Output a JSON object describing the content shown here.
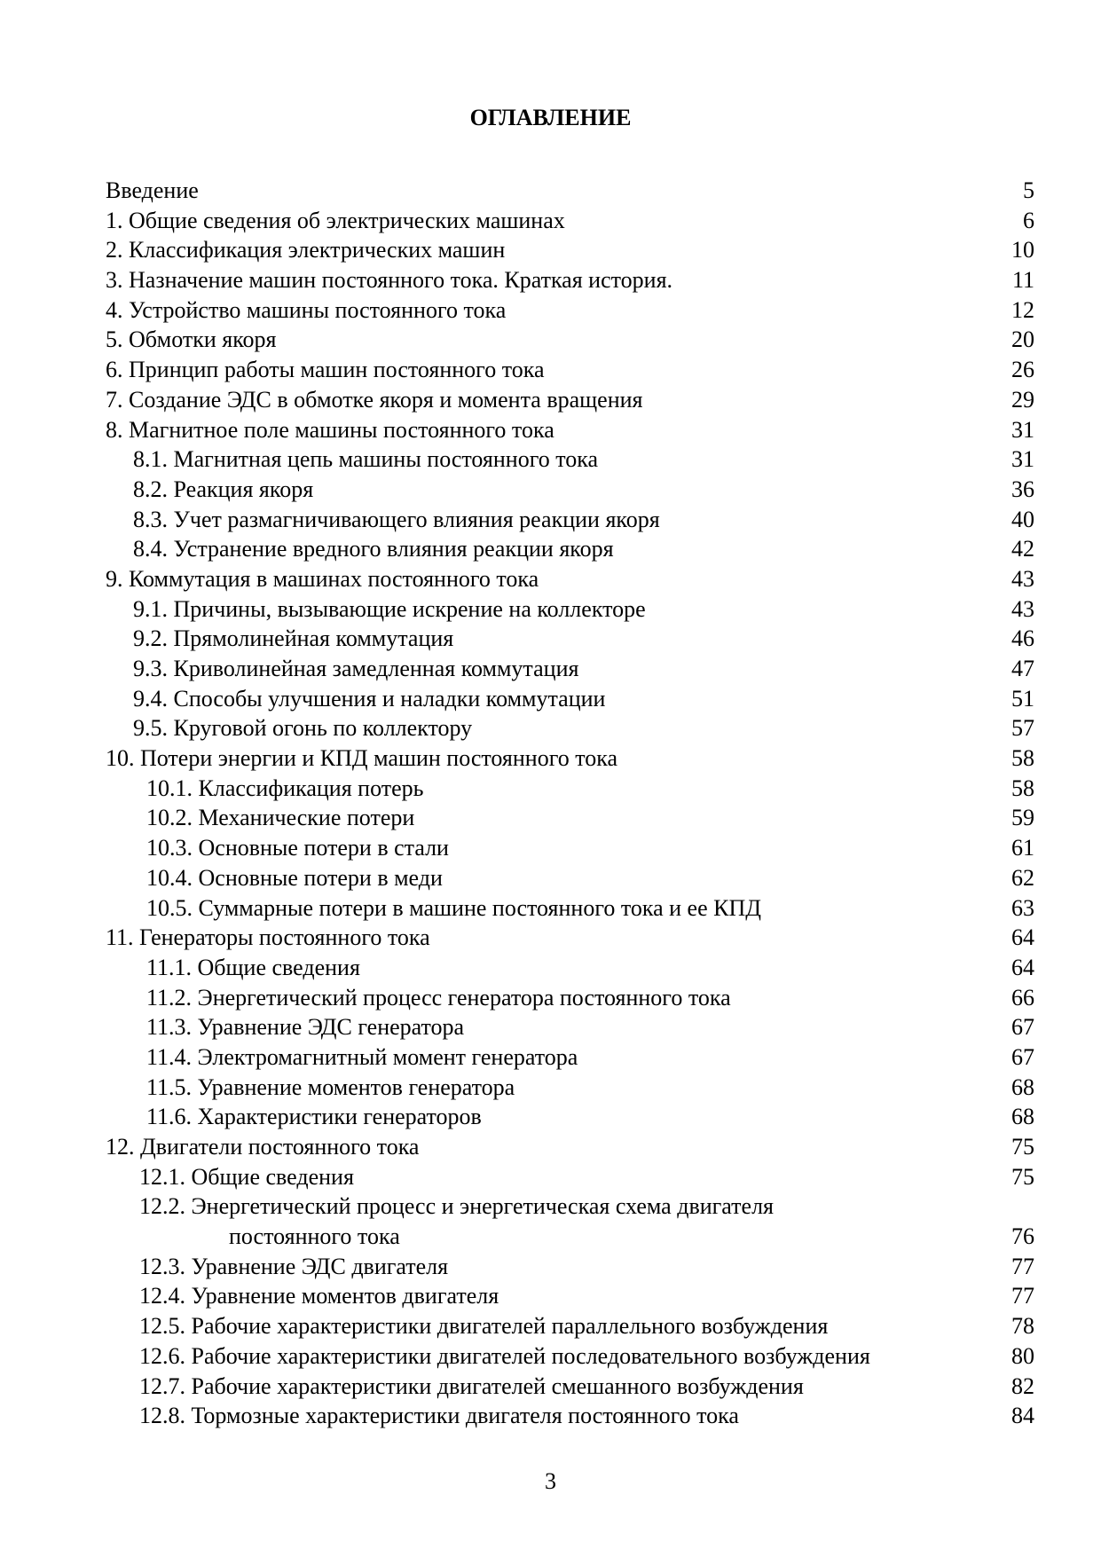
{
  "title": "ОГЛАВЛЕНИЕ",
  "entries": [
    {
      "label": "Введение",
      "page": "5",
      "level": 0
    },
    {
      "label": "1. Общие сведения об электрических машинах",
      "page": "6",
      "level": 0
    },
    {
      "label": "2. Классификация электрических машин",
      "page": "10",
      "level": 0
    },
    {
      "label": "3. Назначение машин постоянного тока. Краткая история.",
      "page": "11",
      "level": 0
    },
    {
      "label": "4. Устройство машины постоянного тока",
      "page": "12",
      "level": 0
    },
    {
      "label": "5. Обмотки якоря",
      "page": "20",
      "level": 0
    },
    {
      "label": "6. Принцип работы машин постоянного тока",
      "page": "26",
      "level": 0
    },
    {
      "label": "7. Создание ЭДС в обмотке якоря и момента вращения",
      "page": "29",
      "level": 0
    },
    {
      "label": "8. Магнитное поле машины постоянного тока",
      "page": "31",
      "level": 0
    },
    {
      "label": "8.1. Магнитная цепь машины постоянного тока",
      "page": "31",
      "level": 1
    },
    {
      "label": "8.2. Реакция якоря",
      "page": "36",
      "level": 1
    },
    {
      "label": "8.3. Учет размагничивающего влияния реакции якоря",
      "page": "40",
      "level": 1
    },
    {
      "label": "8.4. Устранение вредного влияния реакции якоря",
      "page": "42",
      "level": 1
    },
    {
      "label": "9. Коммутация в машинах постоянного тока",
      "page": "43",
      "level": 0
    },
    {
      "label": "9.1. Причины, вызывающие искрение на коллекторе",
      "page": "43",
      "level": 1
    },
    {
      "label": "9.2. Прямолинейная коммутация",
      "page": "46",
      "level": 1
    },
    {
      "label": "9.3. Криволинейная замедленная коммутация",
      "page": "47",
      "level": 1
    },
    {
      "label": "9.4. Способы улучшения и наладки коммутации",
      "page": "51",
      "level": 1
    },
    {
      "label": "9.5. Круговой огонь по коллектору",
      "page": "57",
      "level": 1
    },
    {
      "label": "10. Потери энергии и КПД машин постоянного тока",
      "page": "58",
      "level": 0
    },
    {
      "label": "10.1. Классификация потерь",
      "page": "58",
      "level": 2
    },
    {
      "label": "10.2. Механические потери",
      "page": "59",
      "level": 2
    },
    {
      "label": "10.3. Основные потери в стали",
      "page": "61",
      "level": 2
    },
    {
      "label": "10.4. Основные потери в меди",
      "page": "62",
      "level": 2
    },
    {
      "label": "10.5. Суммарные потери в машине постоянного тока и ее КПД",
      "page": "63",
      "level": 2
    },
    {
      "label": "11. Генераторы постоянного тока",
      "page": "64",
      "level": 0
    },
    {
      "label": "11.1. Общие сведения",
      "page": "64",
      "level": 2
    },
    {
      "label": "11.2. Энергетический процесс генератора постоянного тока",
      "page": "66",
      "level": 2
    },
    {
      "label": "11.3. Уравнение ЭДС генератора",
      "page": "67",
      "level": 2
    },
    {
      "label": "11.4. Электромагнитный момент генератора",
      "page": "67",
      "level": 2
    },
    {
      "label": "11.5. Уравнение моментов генератора",
      "page": "68",
      "level": 2
    },
    {
      "label": "11.6. Характеристики генераторов",
      "page": "68",
      "level": 2
    },
    {
      "label": "12. Двигатели постоянного тока",
      "page": "75",
      "level": 0
    },
    {
      "label": "12.1. Общие сведения",
      "page": "75",
      "level": 3
    },
    {
      "label": "12.2. Энергетический процесс и энергетическая схема двигателя",
      "label_cont": "постоянного тока",
      "page": "76",
      "level": 3
    },
    {
      "label": "12.3. Уравнение ЭДС двигателя",
      "page": "77",
      "level": 3
    },
    {
      "label": "12.4. Уравнение моментов двигателя",
      "page": "77",
      "level": 3
    },
    {
      "label": "12.5. Рабочие характеристики двигателей параллельного возбуждения",
      "page": "78",
      "level": 3
    },
    {
      "label": "12.6. Рабочие характеристики двигателей последовательного возбуждения",
      "page": "80",
      "level": 3
    },
    {
      "label": "12.7. Рабочие характеристики двигателей смешанного возбуждения",
      "page": "82",
      "level": 3
    },
    {
      "label": "12.8. Тормозные характеристики двигателя постоянного тока",
      "page": "84",
      "level": 3
    }
  ],
  "page_number": "3"
}
